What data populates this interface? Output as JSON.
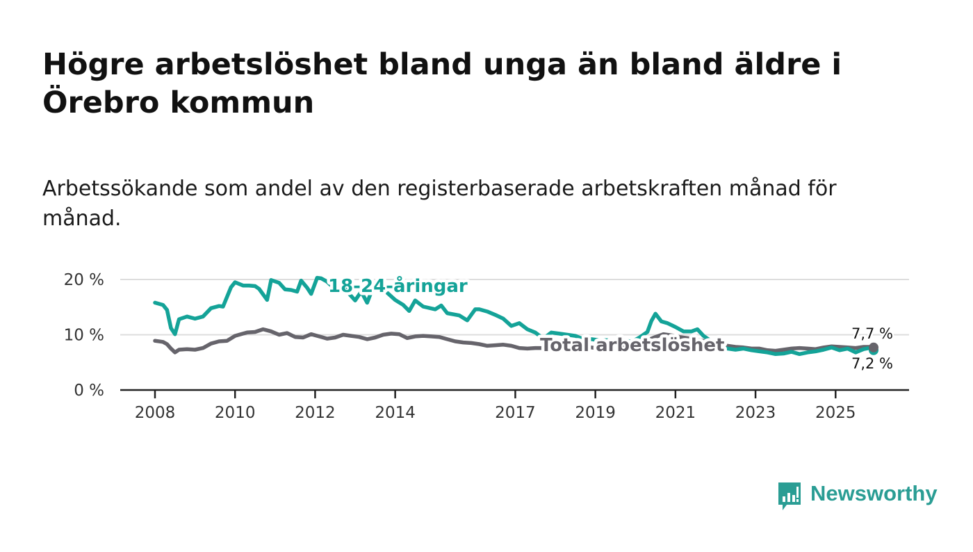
{
  "title": "Högre arbetslöshet bland unga än bland äldre i Örebro kommun",
  "subtitle": "Arbetssökande som andel av den registerbaserade arbetskraften månad för månad.",
  "brand": {
    "name": "Newsworthy",
    "icon": "bar-chart-speech-bubble-icon"
  },
  "colors": {
    "youth": "#14a398",
    "total": "#66646b",
    "grid": "#dddddd",
    "axis": "#222222"
  },
  "chart_data": {
    "type": "line",
    "title": "Högre arbetslöshet bland unga än bland äldre i Örebro kommun",
    "xlabel": "",
    "ylabel": "",
    "xlim": [
      2008.0,
      2025.95
    ],
    "ylim": [
      0,
      20
    ],
    "y_ticks": [
      0,
      10,
      20
    ],
    "y_tick_labels": [
      "0 %",
      "10 %",
      "20 %"
    ],
    "x_ticks": [
      2008,
      2010,
      2012,
      2014,
      2017,
      2019,
      2021,
      2023,
      2025
    ],
    "x_tick_labels": [
      "2008",
      "2010",
      "2012",
      "2014",
      "2017",
      "2019",
      "2021",
      "2023",
      "2025"
    ],
    "grid": true,
    "series": [
      {
        "name": "18-24-åringar",
        "color": "#14a398",
        "end_label": "7,2 %",
        "x": [
          2008.0,
          2008.2,
          2008.3,
          2008.4,
          2008.5,
          2008.6,
          2008.8,
          2009.0,
          2009.2,
          2009.4,
          2009.6,
          2009.7,
          2009.9,
          2010.0,
          2010.2,
          2010.35,
          2010.5,
          2010.6,
          2010.8,
          2010.9,
          2011.1,
          2011.25,
          2011.4,
          2011.55,
          2011.65,
          2011.8,
          2011.9,
          2012.05,
          2012.15,
          2012.3,
          2012.4,
          2012.6,
          2012.8,
          2013.0,
          2013.15,
          2013.3,
          2013.4,
          2013.6,
          2013.8,
          2014.0,
          2014.2,
          2014.35,
          2014.5,
          2014.7,
          2015.0,
          2015.15,
          2015.3,
          2015.6,
          2015.8,
          2016.0,
          2016.1,
          2016.3,
          2016.5,
          2016.7,
          2016.9,
          2017.1,
          2017.3,
          2017.5,
          2017.7,
          2017.9,
          2018.1,
          2018.3,
          2018.5,
          2018.7,
          2018.9,
          2019.1,
          2019.3,
          2019.5,
          2019.7,
          2019.9,
          2020.1,
          2020.3,
          2020.4,
          2020.5,
          2020.65,
          2020.8,
          2021.0,
          2021.2,
          2021.4,
          2021.55,
          2021.7,
          2021.9,
          2022.1,
          2022.3,
          2022.5,
          2022.7,
          2022.9,
          2023.1,
          2023.3,
          2023.5,
          2023.7,
          2023.9,
          2024.1,
          2024.3,
          2024.5,
          2024.7,
          2024.9,
          2025.1,
          2025.3,
          2025.5,
          2025.7,
          2025.85,
          2025.95
        ],
        "values": [
          15.8,
          15.4,
          14.5,
          11.2,
          10.1,
          12.8,
          13.3,
          12.9,
          13.3,
          14.8,
          15.2,
          15.1,
          18.6,
          19.5,
          18.9,
          18.9,
          18.8,
          18.3,
          16.3,
          19.9,
          19.4,
          18.2,
          18.1,
          17.8,
          19.8,
          18.5,
          17.4,
          20.3,
          20.2,
          19.6,
          18.9,
          19.6,
          17.8,
          16.2,
          17.8,
          15.8,
          17.7,
          19.2,
          17.6,
          16.3,
          15.4,
          14.3,
          16.2,
          15.1,
          14.6,
          15.3,
          13.9,
          13.5,
          12.6,
          14.6,
          14.6,
          14.2,
          13.6,
          12.9,
          11.6,
          12.1,
          11.0,
          10.4,
          9.3,
          10.4,
          10.2,
          10.0,
          9.8,
          9.2,
          9.2,
          9.0,
          9.0,
          8.6,
          9.1,
          8.7,
          9.5,
          10.5,
          12.5,
          13.8,
          12.4,
          12.1,
          11.4,
          10.6,
          10.6,
          11.0,
          9.8,
          8.8,
          7.8,
          7.5,
          7.3,
          7.5,
          7.2,
          7.0,
          6.8,
          6.5,
          6.6,
          6.9,
          6.5,
          6.8,
          7.0,
          7.3,
          7.7,
          7.2,
          7.5,
          6.8,
          7.4,
          7.6,
          7.2
        ]
      },
      {
        "name": "Total arbetslöshet",
        "color": "#66646b",
        "end_label": "7,7 %",
        "x": [
          2008.0,
          2008.2,
          2008.3,
          2008.4,
          2008.5,
          2008.6,
          2008.8,
          2009.0,
          2009.2,
          2009.4,
          2009.6,
          2009.8,
          2010.0,
          2010.2,
          2010.3,
          2010.5,
          2010.7,
          2010.9,
          2011.1,
          2011.3,
          2011.5,
          2011.7,
          2011.9,
          2012.1,
          2012.3,
          2012.5,
          2012.7,
          2012.9,
          2013.1,
          2013.3,
          2013.5,
          2013.7,
          2013.9,
          2014.1,
          2014.3,
          2014.5,
          2014.7,
          2014.9,
          2015.1,
          2015.3,
          2015.5,
          2015.7,
          2015.9,
          2016.1,
          2016.3,
          2016.5,
          2016.7,
          2016.9,
          2017.1,
          2017.3,
          2017.5,
          2017.7,
          2017.9,
          2018.1,
          2018.3,
          2018.5,
          2018.7,
          2018.9,
          2019.1,
          2019.3,
          2019.5,
          2019.7,
          2019.9,
          2020.1,
          2020.3,
          2020.5,
          2020.7,
          2020.9,
          2021.1,
          2021.3,
          2021.5,
          2021.7,
          2021.9,
          2022.1,
          2022.3,
          2022.5,
          2022.7,
          2022.9,
          2023.1,
          2023.3,
          2023.5,
          2023.7,
          2023.9,
          2024.1,
          2024.3,
          2024.5,
          2024.7,
          2024.9,
          2025.1,
          2025.3,
          2025.5,
          2025.7,
          2025.85,
          2025.95
        ],
        "values": [
          8.9,
          8.7,
          8.3,
          7.5,
          6.8,
          7.3,
          7.4,
          7.3,
          7.6,
          8.4,
          8.8,
          8.9,
          9.8,
          10.2,
          10.4,
          10.5,
          11.0,
          10.6,
          10.0,
          10.3,
          9.6,
          9.5,
          10.1,
          9.7,
          9.3,
          9.5,
          10.0,
          9.8,
          9.6,
          9.2,
          9.5,
          10.0,
          10.2,
          10.1,
          9.4,
          9.7,
          9.8,
          9.7,
          9.6,
          9.2,
          8.8,
          8.6,
          8.5,
          8.3,
          8.0,
          8.1,
          8.2,
          8.0,
          7.6,
          7.5,
          7.6,
          7.6,
          7.4,
          7.4,
          7.6,
          7.7,
          7.9,
          7.7,
          7.5,
          7.6,
          7.8,
          8.2,
          8.5,
          8.8,
          9.0,
          9.6,
          10.1,
          9.9,
          9.6,
          9.4,
          9.2,
          8.9,
          8.5,
          8.2,
          8.0,
          7.8,
          7.7,
          7.5,
          7.5,
          7.2,
          7.1,
          7.3,
          7.5,
          7.6,
          7.5,
          7.4,
          7.7,
          7.9,
          7.8,
          7.7,
          7.6,
          7.8,
          7.8,
          7.7
        ]
      }
    ]
  }
}
